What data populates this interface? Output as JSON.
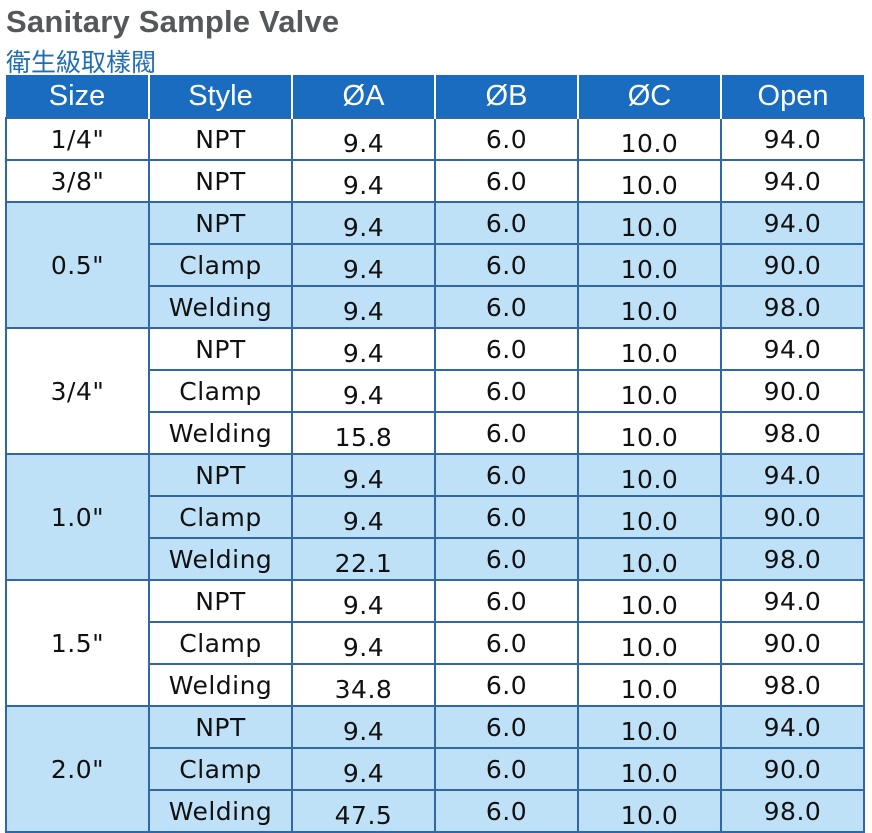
{
  "title": "Sanitary Sample Valve",
  "subtitle": "衛生級取樣閥",
  "headers": [
    "Size",
    "Style",
    "ØA",
    "ØB",
    "ØC",
    "Open"
  ],
  "groups": [
    {
      "size": "1/4\"",
      "shade": "white",
      "rows": [
        {
          "style": "NPT",
          "a": "9.4",
          "b": "6.0",
          "c": "10.0",
          "open": "94.0"
        }
      ]
    },
    {
      "size": "3/8\"",
      "shade": "white",
      "rows": [
        {
          "style": "NPT",
          "a": "9.4",
          "b": "6.0",
          "c": "10.0",
          "open": "94.0"
        }
      ]
    },
    {
      "size": "0.5\"",
      "shade": "blue",
      "rows": [
        {
          "style": "NPT",
          "a": "9.4",
          "b": "6.0",
          "c": "10.0",
          "open": "94.0"
        },
        {
          "style": "Clamp",
          "a": "9.4",
          "b": "6.0",
          "c": "10.0",
          "open": "90.0"
        },
        {
          "style": "Welding",
          "a": "9.4",
          "b": "6.0",
          "c": "10.0",
          "open": "98.0"
        }
      ]
    },
    {
      "size": "3/4\"",
      "shade": "white",
      "rows": [
        {
          "style": "NPT",
          "a": "9.4",
          "b": "6.0",
          "c": "10.0",
          "open": "94.0"
        },
        {
          "style": "Clamp",
          "a": "9.4",
          "b": "6.0",
          "c": "10.0",
          "open": "90.0"
        },
        {
          "style": "Welding",
          "a": "15.8",
          "b": "6.0",
          "c": "10.0",
          "open": "98.0"
        }
      ]
    },
    {
      "size": "1.0\"",
      "shade": "blue",
      "rows": [
        {
          "style": "NPT",
          "a": "9.4",
          "b": "6.0",
          "c": "10.0",
          "open": "94.0"
        },
        {
          "style": "Clamp",
          "a": "9.4",
          "b": "6.0",
          "c": "10.0",
          "open": "90.0"
        },
        {
          "style": "Welding",
          "a": "22.1",
          "b": "6.0",
          "c": "10.0",
          "open": "98.0"
        }
      ]
    },
    {
      "size": "1.5\"",
      "shade": "white",
      "rows": [
        {
          "style": "NPT",
          "a": "9.4",
          "b": "6.0",
          "c": "10.0",
          "open": "94.0"
        },
        {
          "style": "Clamp",
          "a": "9.4",
          "b": "6.0",
          "c": "10.0",
          "open": "90.0"
        },
        {
          "style": "Welding",
          "a": "34.8",
          "b": "6.0",
          "c": "10.0",
          "open": "98.0"
        }
      ]
    },
    {
      "size": "2.0\"",
      "shade": "blue",
      "rows": [
        {
          "style": "NPT",
          "a": "9.4",
          "b": "6.0",
          "c": "10.0",
          "open": "94.0"
        },
        {
          "style": "Clamp",
          "a": "9.4",
          "b": "6.0",
          "c": "10.0",
          "open": "90.0"
        },
        {
          "style": "Welding",
          "a": "47.5",
          "b": "6.0",
          "c": "10.0",
          "open": "98.0"
        }
      ]
    }
  ]
}
